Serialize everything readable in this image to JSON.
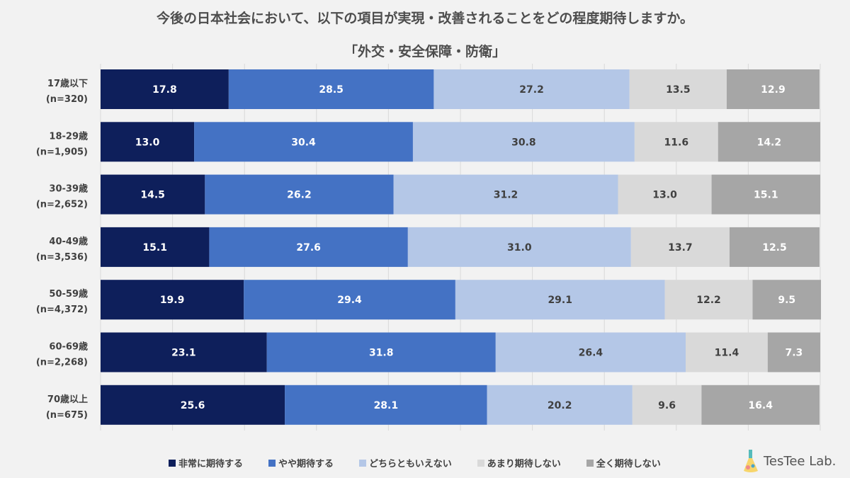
{
  "chart_data": {
    "type": "bar",
    "orientation": "horizontal",
    "stacked": true,
    "title": "今後の日本社会において、以下の項目が実現・改善されることをどの程度期待しますか。",
    "subtitle": "「外交・安全保障・防衛」",
    "categories": [
      [
        "17歳以下",
        "(n=320)"
      ],
      [
        "18-29歳",
        "(n=1,905)"
      ],
      [
        "30-39歳",
        "(n=2,652)"
      ],
      [
        "40-49歳",
        "(n=3,536)"
      ],
      [
        "50-59歳",
        "(n=4,372)"
      ],
      [
        "60-69歳",
        "(n=2,268)"
      ],
      [
        "70歳以上",
        "(n=675)"
      ]
    ],
    "series": [
      {
        "name": "非常に期待する",
        "color": "#0e1f5b",
        "label_color": "#ffffff",
        "values": [
          17.8,
          13.0,
          14.5,
          15.1,
          19.9,
          23.1,
          25.6
        ]
      },
      {
        "name": "やや期待する",
        "color": "#4472c4",
        "label_color": "#ffffff",
        "values": [
          28.5,
          30.4,
          26.2,
          27.6,
          29.4,
          31.8,
          28.1
        ]
      },
      {
        "name": "どちらともいえない",
        "color": "#b4c7e7",
        "label_color": "#404040",
        "values": [
          27.2,
          30.8,
          31.2,
          31.0,
          29.1,
          26.4,
          20.2
        ]
      },
      {
        "name": "あまり期待しない",
        "color": "#d9d9d9",
        "label_color": "#404040",
        "values": [
          13.5,
          11.6,
          13.0,
          13.7,
          12.2,
          11.4,
          9.6
        ]
      },
      {
        "name": "全く期待しない",
        "color": "#a6a6a6",
        "label_color": "#ffffff",
        "values": [
          12.9,
          14.2,
          15.1,
          12.5,
          9.5,
          7.3,
          16.4
        ]
      }
    ],
    "xlim": [
      0,
      100
    ],
    "grid": true,
    "legend": "bottom"
  },
  "logo": {
    "text": "TesTee Lab."
  }
}
